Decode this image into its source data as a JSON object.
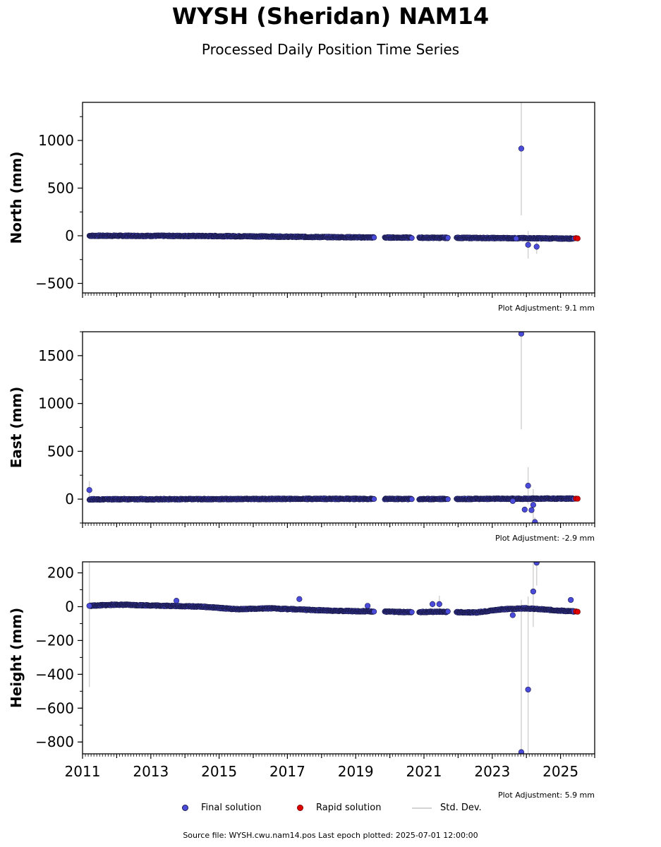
{
  "title": "WYSH (Sheridan) NAM14",
  "subtitle": "Processed Daily Position Time Series",
  "legend": {
    "final": "Final solution",
    "rapid": "Rapid solution",
    "std": "Std. Dev."
  },
  "source_text": "Source file: WYSH.cwu.nam14.pos  Last epoch plotted: 2025-07-01 12:00:00",
  "colors": {
    "final": "#4b4bdb",
    "final_edge": "#1a1a4a",
    "rapid": "#e00000",
    "std": "#d3d3d3"
  },
  "chart_data": [
    {
      "type": "scatter",
      "ylabel": "North (mm)",
      "xlim": [
        2011.0,
        2026.0
      ],
      "ylim": [
        -600,
        1400
      ],
      "yticks": [
        -500,
        0,
        500,
        1000
      ],
      "xticks": [
        2011,
        2013,
        2015,
        2017,
        2019,
        2021,
        2023,
        2025
      ],
      "adjustment": "Plot Adjustment: 9.1 mm",
      "trend": [
        [
          2011.2,
          0
        ],
        [
          2014.0,
          -2
        ],
        [
          2016.0,
          -6
        ],
        [
          2017.5,
          -12
        ],
        [
          2019.5,
          -18
        ],
        [
          2021.8,
          -22
        ],
        [
          2024.0,
          -26
        ],
        [
          2025.5,
          -30
        ]
      ],
      "gaps": [
        [
          2019.55,
          2019.85
        ],
        [
          2020.65,
          2020.85
        ],
        [
          2021.7,
          2021.95
        ]
      ],
      "outliers": [
        {
          "x": 2023.85,
          "y": 915,
          "err": 1400
        },
        {
          "x": 2024.05,
          "y": -95,
          "err": 290
        },
        {
          "x": 2024.3,
          "y": -115,
          "err": 150
        },
        {
          "x": 2023.7,
          "y": -30,
          "err": 20
        }
      ],
      "rapid": {
        "x": [
          2025.45,
          2025.5
        ],
        "y": [
          -25,
          -28
        ]
      }
    },
    {
      "type": "scatter",
      "ylabel": "East (mm)",
      "xlim": [
        2011.0,
        2026.0
      ],
      "ylim": [
        -250,
        1750
      ],
      "yticks": [
        0,
        500,
        1000,
        1500
      ],
      "xticks": [
        2011,
        2013,
        2015,
        2017,
        2019,
        2021,
        2023,
        2025
      ],
      "adjustment": "Plot Adjustment: -2.9 mm",
      "trend": [
        [
          2011.2,
          -2
        ],
        [
          2015.0,
          0
        ],
        [
          2018.0,
          3
        ],
        [
          2021.0,
          1
        ],
        [
          2024.0,
          4
        ],
        [
          2025.5,
          6
        ]
      ],
      "gaps": [
        [
          2019.55,
          2019.85
        ],
        [
          2020.65,
          2020.85
        ],
        [
          2021.7,
          2021.95
        ]
      ],
      "outliers": [
        {
          "x": 2011.2,
          "y": 95,
          "err": 190
        },
        {
          "x": 2023.85,
          "y": 1730,
          "err": 2000
        },
        {
          "x": 2024.05,
          "y": 140,
          "err": 390
        },
        {
          "x": 2024.2,
          "y": -60,
          "err": 330
        },
        {
          "x": 2024.25,
          "y": -240,
          "err": 100
        },
        {
          "x": 2023.6,
          "y": -20,
          "err": 20
        },
        {
          "x": 2023.95,
          "y": -110,
          "err": 20
        },
        {
          "x": 2024.15,
          "y": -115,
          "err": 30
        }
      ],
      "rapid": {
        "x": [
          2025.45,
          2025.5
        ],
        "y": [
          5,
          4
        ]
      }
    },
    {
      "type": "scatter",
      "ylabel": "Height (mm)",
      "xlim": [
        2011.0,
        2026.0
      ],
      "ylim": [
        -870,
        265
      ],
      "yticks": [
        -800,
        -600,
        -400,
        -200,
        0,
        200
      ],
      "xticks": [
        2011,
        2013,
        2015,
        2017,
        2019,
        2021,
        2023,
        2025
      ],
      "adjustment": "Plot Adjustment: 5.9 mm",
      "trend": [
        [
          2011.2,
          5
        ],
        [
          2012.0,
          12
        ],
        [
          2013.5,
          5
        ],
        [
          2014.5,
          0
        ],
        [
          2015.5,
          -15
        ],
        [
          2016.5,
          -10
        ],
        [
          2017.5,
          -18
        ],
        [
          2018.5,
          -25
        ],
        [
          2019.5,
          -28
        ],
        [
          2020.5,
          -32
        ],
        [
          2021.5,
          -30
        ],
        [
          2022.5,
          -35
        ],
        [
          2023.3,
          -15
        ],
        [
          2024.0,
          -10
        ],
        [
          2024.6,
          -18
        ],
        [
          2025.5,
          -30
        ]
      ],
      "gaps": [
        [
          2019.55,
          2019.85
        ],
        [
          2020.65,
          2020.85
        ],
        [
          2021.7,
          2021.95
        ]
      ],
      "outliers": [
        {
          "x": 2011.2,
          "y": 5,
          "err": 960
        },
        {
          "x": 2013.75,
          "y": 35,
          "err": 20
        },
        {
          "x": 2017.35,
          "y": 45,
          "err": 20
        },
        {
          "x": 2019.35,
          "y": 5,
          "err": 20
        },
        {
          "x": 2021.25,
          "y": 15,
          "err": 40
        },
        {
          "x": 2021.45,
          "y": 15,
          "err": 100
        },
        {
          "x": 2023.85,
          "y": -860,
          "err": 1800
        },
        {
          "x": 2024.05,
          "y": -490,
          "err": 1100
        },
        {
          "x": 2024.2,
          "y": 90,
          "err": 420
        },
        {
          "x": 2024.3,
          "y": 260,
          "err": 270
        },
        {
          "x": 2023.6,
          "y": -50,
          "err": 30
        },
        {
          "x": 2025.3,
          "y": 40,
          "err": 30
        }
      ],
      "rapid": {
        "x": [
          2025.45,
          2025.5
        ],
        "y": [
          -28,
          -30
        ]
      }
    }
  ]
}
